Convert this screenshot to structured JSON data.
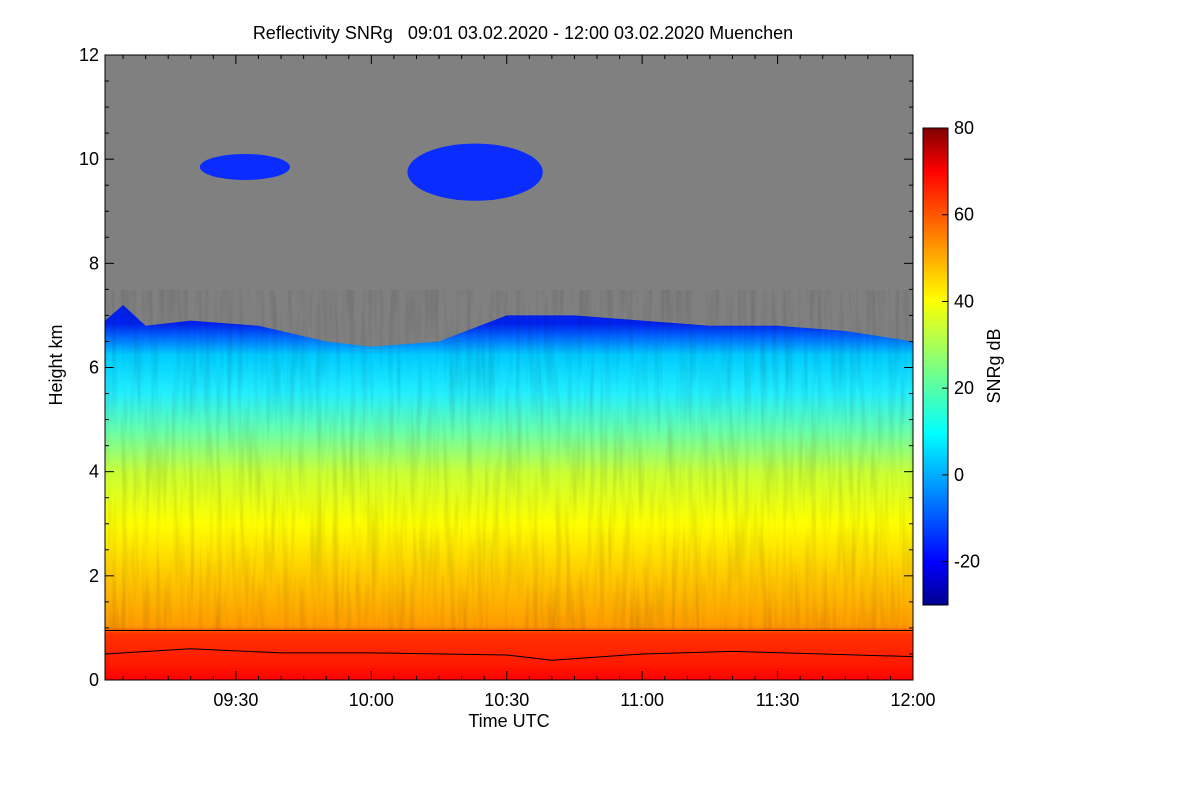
{
  "chart_data": {
    "type": "heatmap",
    "title": "Reflectivity SNRg   09:01 03.02.2020 - 12:00 03.02.2020 Muenchen",
    "xlabel": "Time UTC",
    "ylabel": "Height km",
    "colorbar_label": "SNRg dB",
    "xlim": [
      "09:01",
      "12:00"
    ],
    "ylim": [
      0,
      12
    ],
    "x_ticks": [
      {
        "value": 90,
        "label": "09:30"
      },
      {
        "value": 120,
        "label": "10:00"
      },
      {
        "value": 150,
        "label": "10:30"
      },
      {
        "value": 180,
        "label": "11:00"
      },
      {
        "value": 210,
        "label": "11:30"
      },
      {
        "value": 240,
        "label": "12:00"
      }
    ],
    "y_ticks": [
      {
        "value": 0,
        "label": "0"
      },
      {
        "value": 2,
        "label": "2"
      },
      {
        "value": 4,
        "label": "4"
      },
      {
        "value": 6,
        "label": "6"
      },
      {
        "value": 8,
        "label": "8"
      },
      {
        "value": 10,
        "label": "10"
      },
      {
        "value": 12,
        "label": "12"
      }
    ],
    "colorbar_range": [
      -30,
      80
    ],
    "colorbar_ticks": [
      {
        "value": -20,
        "label": "-20"
      },
      {
        "value": 0,
        "label": "0"
      },
      {
        "value": 20,
        "label": "20"
      },
      {
        "value": 40,
        "label": "40"
      },
      {
        "value": 60,
        "label": "60"
      },
      {
        "value": 80,
        "label": "80"
      }
    ],
    "colormap": [
      "#00008f",
      "#0000ff",
      "#00aaff",
      "#00ffff",
      "#7fff7f",
      "#ffff00",
      "#ffaa00",
      "#ff5500",
      "#ff0000",
      "#800000"
    ],
    "no_data_color": "#808080",
    "cloud_top_km": [
      [
        61,
        6.9
      ],
      [
        65,
        7.2
      ],
      [
        70,
        6.8
      ],
      [
        80,
        6.9
      ],
      [
        95,
        6.8
      ],
      [
        110,
        6.5
      ],
      [
        120,
        6.4
      ],
      [
        135,
        6.5
      ],
      [
        150,
        7.0
      ],
      [
        165,
        7.0
      ],
      [
        180,
        6.9
      ],
      [
        195,
        6.8
      ],
      [
        210,
        6.8
      ],
      [
        225,
        6.7
      ],
      [
        240,
        6.5
      ]
    ],
    "cirrus_layers": [
      {
        "t_start": 82,
        "t_end": 102,
        "h_bottom": 9.6,
        "h_top": 10.1
      },
      {
        "t_start": 128,
        "t_end": 158,
        "h_bottom": 9.2,
        "h_top": 10.3
      }
    ],
    "reference_line_km": 0.95,
    "trace_km": [
      [
        61,
        0.5
      ],
      [
        80,
        0.6
      ],
      [
        100,
        0.52
      ],
      [
        120,
        0.52
      ],
      [
        150,
        0.48
      ],
      [
        160,
        0.38
      ],
      [
        180,
        0.5
      ],
      [
        200,
        0.55
      ],
      [
        220,
        0.5
      ],
      [
        240,
        0.45
      ]
    ],
    "snr_profile": [
      [
        0,
        75
      ],
      [
        0.3,
        72
      ],
      [
        0.9,
        66
      ],
      [
        1.0,
        55
      ],
      [
        2.0,
        45
      ],
      [
        3.0,
        38
      ],
      [
        4.0,
        30
      ],
      [
        5.0,
        18
      ],
      [
        6.0,
        8
      ],
      [
        6.8,
        -15
      ]
    ]
  }
}
